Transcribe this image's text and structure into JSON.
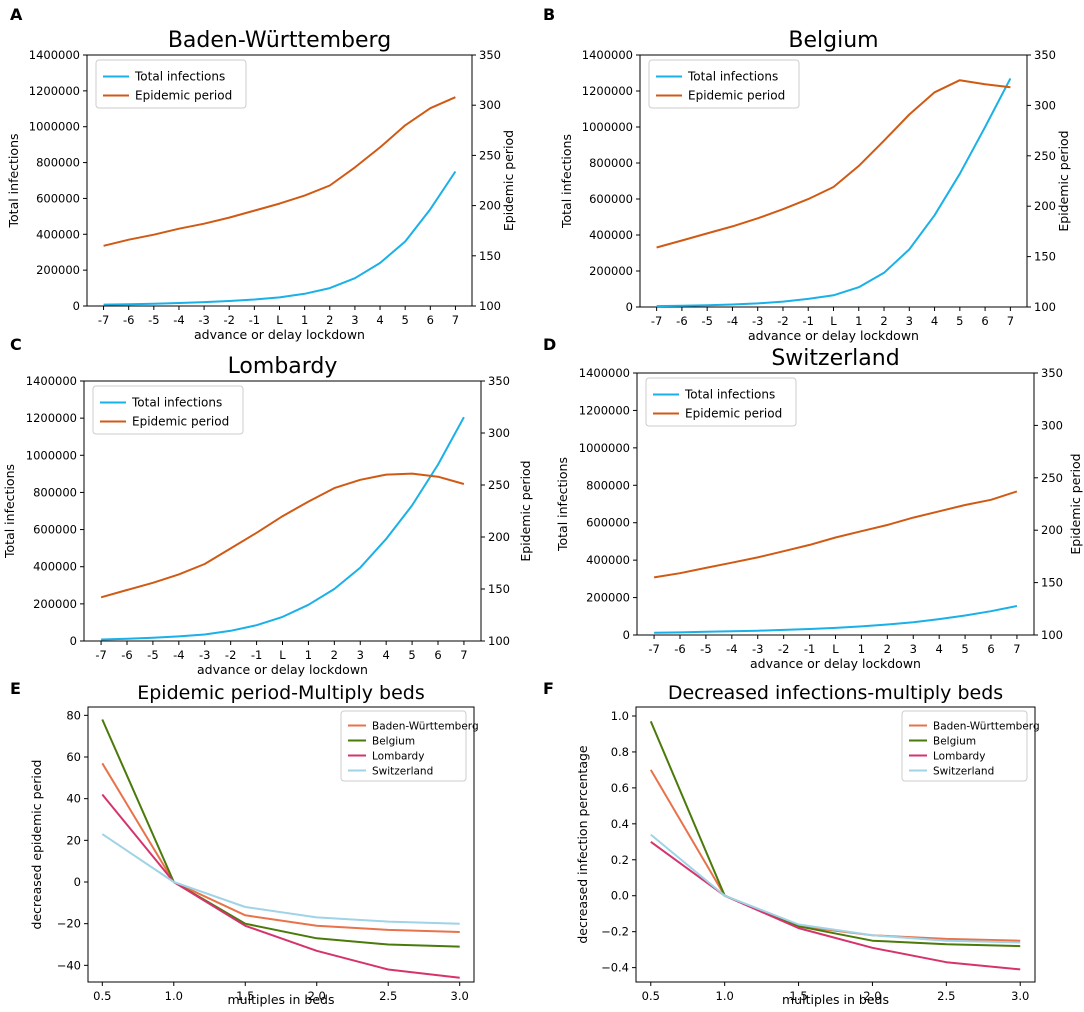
{
  "chart_data": [
    {
      "panel": "A",
      "type": "line",
      "dual_axis": true,
      "title": "Baden-Württemberg",
      "xlabel": "advance or delay lockdown",
      "ylabel": "Total infections",
      "ylabel_right": "Epidemic period",
      "x_ticks": [
        "-7",
        "-6",
        "-5",
        "-4",
        "-3",
        "-2",
        "-1",
        "L",
        "1",
        "2",
        "3",
        "4",
        "5",
        "6",
        "7"
      ],
      "ylim": [
        0,
        1400000
      ],
      "y_ticks": [
        "0",
        "200000",
        "400000",
        "600000",
        "800000",
        "1000000",
        "1200000",
        "1400000"
      ],
      "ylim_right": [
        100,
        350
      ],
      "y_ticks_right": [
        "100",
        "150",
        "200",
        "250",
        "300",
        "350"
      ],
      "legend_loc": "upper-left",
      "series": [
        {
          "name": "Total infections",
          "color": "#1ab0e8",
          "axis": "left",
          "values": [
            8000,
            10000,
            13000,
            17000,
            22000,
            28000,
            36000,
            48000,
            68000,
            100000,
            155000,
            240000,
            360000,
            540000,
            750000
          ]
        },
        {
          "name": "Epidemic period",
          "color": "#d05a14",
          "axis": "right",
          "values": [
            160,
            166,
            171,
            177,
            182,
            188,
            195,
            202,
            210,
            220,
            238,
            258,
            280,
            297,
            308
          ]
        }
      ]
    },
    {
      "panel": "B",
      "type": "line",
      "dual_axis": true,
      "title": "Belgium",
      "xlabel": "advance or delay lockdown",
      "ylabel": "Total infections",
      "ylabel_right": "Epidemic period",
      "x_ticks": [
        "-7",
        "-6",
        "-5",
        "-4",
        "-3",
        "-2",
        "-1",
        "L",
        "1",
        "2",
        "3",
        "4",
        "5",
        "6",
        "7"
      ],
      "ylim": [
        0,
        1400000
      ],
      "y_ticks": [
        "0",
        "200000",
        "400000",
        "600000",
        "800000",
        "1000000",
        "1200000",
        "1400000"
      ],
      "ylim_right": [
        100,
        350
      ],
      "y_ticks_right": [
        "100",
        "150",
        "200",
        "250",
        "300",
        "350"
      ],
      "legend_loc": "upper-left",
      "series": [
        {
          "name": "Total infections",
          "color": "#1ab0e8",
          "axis": "left",
          "values": [
            5000,
            7000,
            10000,
            14000,
            20000,
            30000,
            45000,
            65000,
            110000,
            190000,
            320000,
            510000,
            740000,
            1000000,
            1270000
          ]
        },
        {
          "name": "Epidemic period",
          "color": "#d05a14",
          "axis": "right",
          "values": [
            159,
            166,
            173,
            180,
            188,
            197,
            207,
            219,
            240,
            265,
            291,
            313,
            325,
            321,
            318
          ]
        }
      ]
    },
    {
      "panel": "C",
      "type": "line",
      "dual_axis": true,
      "title": "Lombardy",
      "xlabel": "advance or delay lockdown",
      "ylabel": "Total infections",
      "ylabel_right": "Epidemic period",
      "x_ticks": [
        "-7",
        "-6",
        "-5",
        "-4",
        "-3",
        "-2",
        "-1",
        "L",
        "1",
        "2",
        "3",
        "4",
        "5",
        "6",
        "7"
      ],
      "ylim": [
        0,
        1400000
      ],
      "y_ticks": [
        "0",
        "200000",
        "400000",
        "600000",
        "800000",
        "1000000",
        "1200000",
        "1400000"
      ],
      "ylim_right": [
        100,
        350
      ],
      "y_ticks_right": [
        "100",
        "150",
        "200",
        "250",
        "300",
        "350"
      ],
      "legend_loc": "upper-left",
      "series": [
        {
          "name": "Total infections",
          "color": "#1ab0e8",
          "axis": "left",
          "values": [
            8000,
            12000,
            17000,
            25000,
            35000,
            55000,
            85000,
            130000,
            195000,
            280000,
            395000,
            550000,
            730000,
            950000,
            1205000
          ]
        },
        {
          "name": "Epidemic period",
          "color": "#d05a14",
          "axis": "right",
          "values": [
            142,
            149,
            156,
            164,
            174,
            189,
            204,
            220,
            234,
            247,
            255,
            260,
            261,
            258,
            251
          ]
        }
      ]
    },
    {
      "panel": "D",
      "type": "line",
      "dual_axis": true,
      "title": "Switzerland",
      "xlabel": "advance or delay lockdown",
      "ylabel": "Total infections",
      "ylabel_right": "Epidemic period",
      "x_ticks": [
        "-7",
        "-6",
        "-5",
        "-4",
        "-3",
        "-2",
        "-1",
        "L",
        "1",
        "2",
        "3",
        "4",
        "5",
        "6",
        "7"
      ],
      "ylim": [
        0,
        1400000
      ],
      "y_ticks": [
        "0",
        "200000",
        "400000",
        "600000",
        "800000",
        "1000000",
        "1200000",
        "1400000"
      ],
      "ylim_right": [
        100,
        350
      ],
      "y_ticks_right": [
        "100",
        "150",
        "200",
        "250",
        "300",
        "350"
      ],
      "legend_loc": "upper-left",
      "series": [
        {
          "name": "Total infections",
          "color": "#1ab0e8",
          "axis": "left",
          "values": [
            12000,
            14000,
            17000,
            20000,
            23000,
            27000,
            32000,
            38000,
            46000,
            56000,
            68000,
            85000,
            104000,
            127000,
            155000
          ]
        },
        {
          "name": "Epidemic period",
          "color": "#d05a14",
          "axis": "right",
          "values": [
            155,
            159,
            164,
            169,
            174,
            180,
            186,
            193,
            199,
            205,
            212,
            218,
            224,
            229,
            237
          ]
        }
      ]
    },
    {
      "panel": "E",
      "type": "line",
      "title": "Epidemic period-Multiply beds",
      "xlabel": "multiples in beds",
      "ylabel": "decreased epidemic period",
      "x": [
        0.5,
        1.0,
        1.5,
        2.0,
        2.5,
        3.0
      ],
      "x_ticks": [
        "0.5",
        "1.0",
        "1.5",
        "2.0",
        "2.5",
        "3.0"
      ],
      "xlim": [
        0.4,
        3.1
      ],
      "ylim": [
        -48,
        84
      ],
      "y_tick_values": [
        -40,
        -20,
        0,
        20,
        40,
        60,
        80
      ],
      "y_ticks": [
        "−40",
        "−20",
        "0",
        "20",
        "40",
        "60",
        "80"
      ],
      "legend_loc": "upper-right",
      "series": [
        {
          "name": "Baden-Württemberg",
          "color": "#e8734a",
          "values": [
            57,
            0,
            -16,
            -21,
            -23,
            -24
          ]
        },
        {
          "name": "Belgium",
          "color": "#4a7a0a",
          "values": [
            78,
            0,
            -20,
            -27,
            -30,
            -31
          ]
        },
        {
          "name": "Lombardy",
          "color": "#d6336c",
          "values": [
            42,
            0,
            -21,
            -33,
            -42,
            -46
          ]
        },
        {
          "name": "Switzerland",
          "color": "#9fd3e6",
          "values": [
            23,
            0,
            -12,
            -17,
            -19,
            -20
          ]
        }
      ]
    },
    {
      "panel": "F",
      "type": "line",
      "title": "Decreased infections-multiply beds",
      "xlabel": "multiples in beds",
      "ylabel": "decreased infection percentage",
      "x": [
        0.5,
        1.0,
        1.5,
        2.0,
        2.5,
        3.0
      ],
      "x_ticks": [
        "0.5",
        "1.0",
        "1.5",
        "2.0",
        "2.5",
        "3.0"
      ],
      "xlim": [
        0.4,
        3.1
      ],
      "ylim": [
        -0.48,
        1.05
      ],
      "y_tick_values": [
        -0.4,
        -0.2,
        0.0,
        0.2,
        0.4,
        0.6,
        0.8,
        1.0
      ],
      "y_ticks": [
        "−0.4",
        "−0.2",
        "0.0",
        "0.2",
        "0.4",
        "0.6",
        "0.8",
        "1.0"
      ],
      "legend_loc": "upper-right",
      "series": [
        {
          "name": "Baden-Württemberg",
          "color": "#e8734a",
          "values": [
            0.7,
            0,
            -0.17,
            -0.22,
            -0.24,
            -0.25
          ]
        },
        {
          "name": "Belgium",
          "color": "#4a7a0a",
          "values": [
            0.97,
            0,
            -0.17,
            -0.25,
            -0.27,
            -0.28
          ]
        },
        {
          "name": "Lombardy",
          "color": "#d6336c",
          "values": [
            0.3,
            0,
            -0.18,
            -0.29,
            -0.37,
            -0.41
          ]
        },
        {
          "name": "Switzerland",
          "color": "#9fd3e6",
          "values": [
            0.34,
            0,
            -0.16,
            -0.22,
            -0.25,
            -0.26
          ]
        }
      ]
    }
  ]
}
